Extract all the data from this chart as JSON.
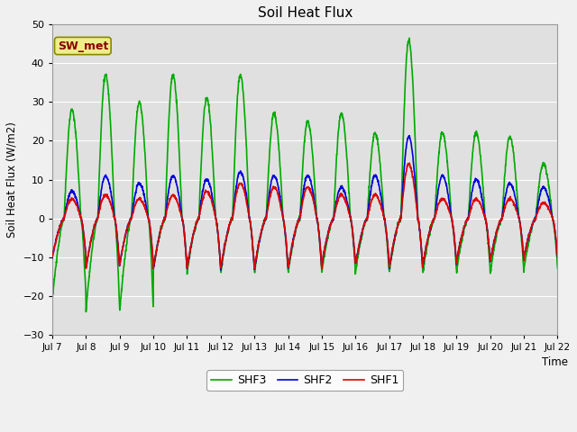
{
  "title": "Soil Heat Flux",
  "ylabel": "Soil Heat Flux (W/m2)",
  "xlabel": "Time",
  "ylim": [
    -30,
    50
  ],
  "yticks": [
    -30,
    -20,
    -10,
    0,
    10,
    20,
    30,
    40,
    50
  ],
  "background_color": "#f0f0f0",
  "plot_bg_color": "#e0e0e0",
  "shf1_color": "#dd0000",
  "shf2_color": "#0000dd",
  "shf3_color": "#00aa00",
  "line_width": 1.2,
  "num_days": 15,
  "points_per_day": 144,
  "start_day": 7,
  "sw_met_box_color": "#eeee88",
  "sw_met_text_color": "#880000",
  "sw_met_edge_color": "#888800",
  "day_amps_shf1": [
    5,
    6,
    5,
    6,
    7,
    9,
    8,
    8,
    6,
    6,
    14,
    5,
    5,
    5,
    4
  ],
  "day_amps_shf2": [
    7,
    11,
    9,
    11,
    10,
    12,
    11,
    11,
    8,
    11,
    21,
    11,
    10,
    9,
    8
  ],
  "day_amps_shf3": [
    28,
    37,
    30,
    37,
    31,
    37,
    27,
    25,
    27,
    22,
    46,
    22,
    22,
    21,
    14
  ],
  "day_neg_amps_shf1": [
    10,
    13,
    12,
    13,
    13,
    13,
    13,
    13,
    12,
    12,
    13,
    12,
    11,
    11,
    10
  ],
  "day_neg_amps_shf2": [
    10,
    13,
    12,
    13,
    13,
    13,
    13,
    13,
    12,
    12,
    13,
    12,
    11,
    11,
    10
  ],
  "day_neg_amps_shf3": [
    21,
    24,
    24,
    13,
    14,
    14,
    14,
    14,
    14,
    14,
    14,
    14,
    14,
    14,
    13
  ]
}
